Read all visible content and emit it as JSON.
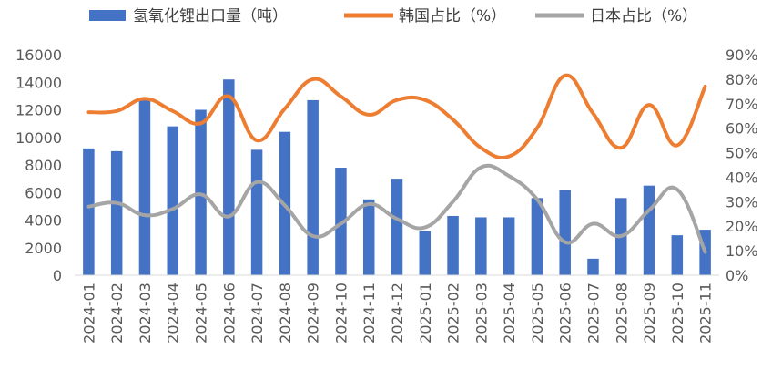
{
  "chart_data": {
    "type": "bar",
    "categories": [
      "2024-01",
      "2024-02",
      "2024-03",
      "2024-04",
      "2024-05",
      "2024-06",
      "2024-07",
      "2024-08",
      "2024-09",
      "2024-10",
      "2024-11",
      "2024-12",
      "2025-01",
      "2025-02",
      "2025-03",
      "2025-04",
      "2025-05",
      "2025-06",
      "2025-07",
      "2025-08",
      "2025-09",
      "2025-10",
      "2025-11"
    ],
    "series": [
      {
        "name": "氢氧化锂出口量（吨）",
        "type": "bar",
        "axis": "left",
        "color": "#4472C4",
        "values": [
          9200,
          9000,
          12700,
          10800,
          12000,
          14200,
          9100,
          10400,
          12700,
          7800,
          5500,
          7000,
          3200,
          4300,
          4200,
          4200,
          5600,
          6200,
          1200,
          5600,
          6500,
          2900,
          3300
        ]
      },
      {
        "name": "韩国占比（%）",
        "type": "line",
        "axis": "right",
        "color": "#ED7D31",
        "values": [
          66.5,
          67,
          72,
          67,
          62,
          73,
          55,
          68,
          80,
          73,
          65.5,
          71.5,
          71.5,
          63.5,
          52,
          48.5,
          60,
          81.5,
          66,
          52,
          69.5,
          53,
          77
        ]
      },
      {
        "name": "日本占比（%）",
        "type": "line",
        "axis": "right",
        "color": "#A5A5A5",
        "values": [
          28,
          29.5,
          24.5,
          27,
          33,
          24,
          38,
          28.5,
          16,
          21,
          29,
          23,
          19.5,
          30,
          44,
          40.5,
          31,
          13.5,
          21,
          16,
          26.5,
          35,
          9.5
        ]
      }
    ],
    "y_left": {
      "min": 0,
      "max": 16000,
      "step": 2000,
      "ticks": [
        "0",
        "2000",
        "4000",
        "6000",
        "8000",
        "10000",
        "12000",
        "14000",
        "16000"
      ]
    },
    "y_right": {
      "min": 0,
      "max": 90,
      "step": 10,
      "ticks": [
        "0%",
        "10%",
        "20%",
        "30%",
        "40%",
        "50%",
        "60%",
        "70%",
        "80%",
        "90%"
      ]
    },
    "grid": false,
    "legend_position": "top"
  }
}
